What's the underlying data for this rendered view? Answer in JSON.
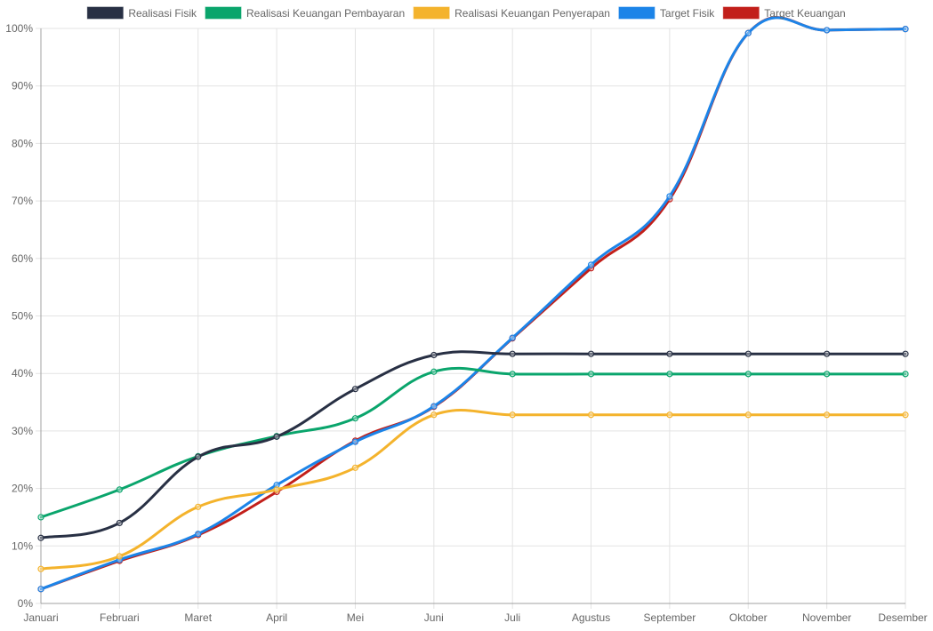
{
  "chart_data": {
    "type": "line",
    "title": "",
    "xlabel": "",
    "ylabel": "",
    "ylim": [
      0,
      100
    ],
    "y_ticks": [
      "0%",
      "10%",
      "20%",
      "30%",
      "40%",
      "50%",
      "60%",
      "70%",
      "80%",
      "90%",
      "100%"
    ],
    "y_tick_values": [
      0,
      10,
      20,
      30,
      40,
      50,
      60,
      70,
      80,
      90,
      100
    ],
    "grid": true,
    "legend_position": "top-center",
    "categories": [
      "Januari",
      "Februari",
      "Maret",
      "April",
      "Mei",
      "Juni",
      "Juli",
      "Agustus",
      "September",
      "Oktober",
      "November",
      "Desember"
    ],
    "series": [
      {
        "name": "Realisasi Fisik",
        "color": "#283044",
        "values": [
          11.4,
          14.0,
          25.5,
          29.0,
          37.3,
          43.2,
          43.4,
          43.4,
          43.4,
          43.4,
          43.4,
          43.4
        ]
      },
      {
        "name": "Realisasi Keuangan Pembayaran",
        "color": "#0aa56c",
        "values": [
          15.0,
          19.8,
          25.6,
          29.1,
          32.2,
          40.3,
          39.9,
          39.9,
          39.9,
          39.9,
          39.9,
          39.9
        ]
      },
      {
        "name": "Realisasi Keuangan Penyerapan",
        "color": "#f4b32c",
        "values": [
          6.0,
          8.2,
          16.8,
          19.8,
          23.6,
          32.8,
          32.8,
          32.8,
          32.8,
          32.8,
          32.8,
          32.8
        ]
      },
      {
        "name": "Target Fisik",
        "color": "#1c84e8",
        "values": [
          2.5,
          7.6,
          12.1,
          20.6,
          28.1,
          34.3,
          46.2,
          58.9,
          70.8,
          99.2,
          99.7,
          99.9
        ]
      },
      {
        "name": "Target Keuangan",
        "color": "#c21f1a",
        "values": [
          2.5,
          7.4,
          11.9,
          19.4,
          28.3,
          34.2,
          46.1,
          58.3,
          70.3,
          99.2,
          99.7,
          99.9
        ]
      }
    ]
  }
}
